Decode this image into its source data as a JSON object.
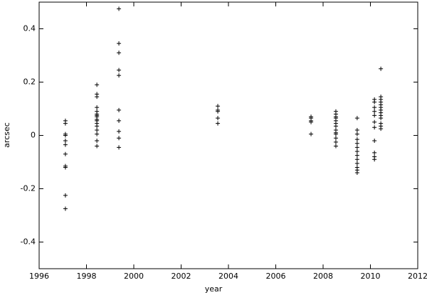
{
  "chart_data": {
    "type": "scatter",
    "xlabel": "year",
    "ylabel": "arcsec",
    "color": "#000000",
    "xlim": [
      1996,
      2012
    ],
    "xticks": [
      1996,
      1998,
      2000,
      2002,
      2004,
      2006,
      2008,
      2010,
      2012
    ],
    "ylim": [
      -0.5,
      0.5
    ],
    "yticks": [
      -0.4,
      -0.2,
      0,
      0.2,
      0.4
    ],
    "x": [
      1997.11,
      1997.11,
      1997.11,
      1997.11,
      1997.11,
      1997.11,
      1997.11,
      1997.11,
      1997.11,
      1997.11,
      1997.11,
      1998.44,
      1998.44,
      1998.44,
      1998.44,
      1998.44,
      1998.44,
      1998.44,
      1998.44,
      1998.44,
      1998.44,
      1998.44,
      1998.44,
      1998.44,
      1998.44,
      1998.44,
      1998.44,
      1999.37,
      1999.37,
      1999.37,
      1999.37,
      1999.37,
      1999.37,
      1999.37,
      1999.37,
      1999.37,
      1999.37,
      2003.55,
      2003.55,
      2003.55,
      2003.55,
      2003.55,
      2007.49,
      2007.49,
      2007.49,
      2007.49,
      2007.49,
      2008.54,
      2008.54,
      2008.54,
      2008.54,
      2008.54,
      2008.54,
      2008.54,
      2008.54,
      2008.54,
      2008.54,
      2008.54,
      2008.54,
      2008.54,
      2009.44,
      2009.44,
      2009.44,
      2009.44,
      2009.44,
      2009.44,
      2009.44,
      2009.44,
      2009.44,
      2009.44,
      2009.44,
      2009.44,
      2009.44,
      2010.17,
      2010.17,
      2010.17,
      2010.17,
      2010.17,
      2010.17,
      2010.17,
      2010.17,
      2010.17,
      2010.17,
      2010.17,
      2010.44,
      2010.44,
      2010.44,
      2010.44,
      2010.44,
      2010.44,
      2010.44,
      2010.44,
      2010.44,
      2010.44,
      2010.44,
      2010.44,
      2010.44
    ],
    "y": [
      0.055,
      0.045,
      0.005,
      0.0,
      -0.02,
      -0.035,
      -0.07,
      -0.115,
      -0.12,
      -0.225,
      -0.275,
      0.19,
      0.155,
      0.145,
      0.105,
      0.09,
      0.08,
      0.075,
      0.07,
      0.06,
      0.055,
      0.045,
      0.035,
      0.02,
      0.005,
      -0.02,
      -0.04,
      0.475,
      0.345,
      0.31,
      0.245,
      0.225,
      0.095,
      0.055,
      0.015,
      -0.01,
      -0.045,
      0.11,
      0.095,
      0.09,
      0.065,
      0.045,
      0.07,
      0.065,
      0.055,
      0.05,
      0.005,
      0.09,
      0.08,
      0.07,
      0.065,
      0.055,
      0.045,
      0.035,
      0.02,
      0.01,
      0.005,
      -0.01,
      -0.025,
      -0.04,
      0.065,
      0.02,
      0.005,
      -0.015,
      -0.03,
      -0.045,
      -0.06,
      -0.075,
      -0.09,
      -0.105,
      -0.12,
      -0.13,
      -0.14,
      0.135,
      0.125,
      0.105,
      0.09,
      0.075,
      0.05,
      0.03,
      -0.02,
      -0.065,
      -0.08,
      -0.09,
      0.25,
      0.145,
      0.135,
      0.125,
      0.115,
      0.105,
      0.095,
      0.085,
      0.075,
      0.065,
      0.045,
      0.035,
      0.025
    ]
  }
}
